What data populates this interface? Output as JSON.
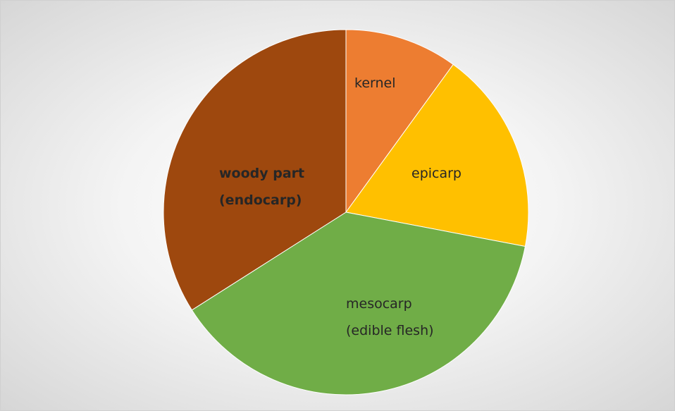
{
  "chart_data": {
    "type": "pie",
    "categories": [
      "kernel",
      "epicarp",
      "mesocarp (edible flesh)",
      "woody part (endocarp)"
    ],
    "values": [
      10,
      18,
      38,
      34
    ],
    "colors": [
      "#ED7D31",
      "#FFC000",
      "#70AD47",
      "#9E480E"
    ]
  }
}
